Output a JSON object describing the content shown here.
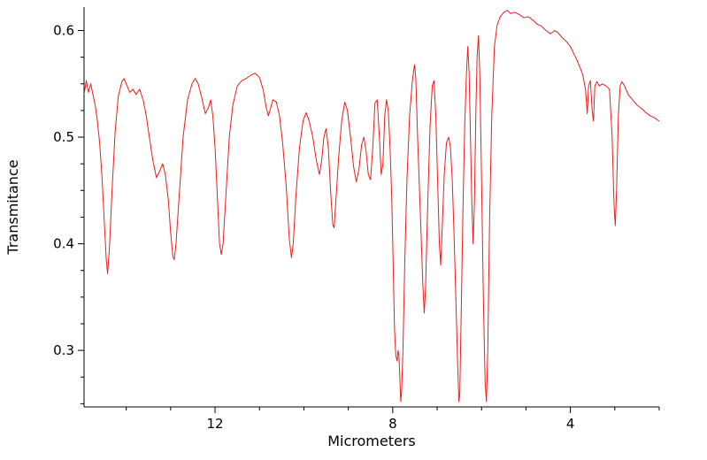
{
  "figure_title": "",
  "chart_data": {
    "type": "line",
    "title": "",
    "xlabel": "Micrometers",
    "ylabel": "Transmitance",
    "x_reversed": true,
    "xlim": [
      14.95,
      2.0
    ],
    "ylim": [
      0.247,
      0.622
    ],
    "grid": false,
    "legend": "none",
    "line_color": "#ee1c1c",
    "axis_color": "#000000",
    "x_ticks": [
      {
        "value": 12,
        "label": "12"
      },
      {
        "value": 8,
        "label": "8"
      },
      {
        "value": 4,
        "label": "4"
      }
    ],
    "x_minor_ticks": [
      14,
      13,
      11,
      10,
      9,
      7,
      6,
      5,
      3,
      2
    ],
    "y_ticks": [
      {
        "value": 0.3,
        "label": "0.3"
      },
      {
        "value": 0.4,
        "label": "0.4"
      },
      {
        "value": 0.5,
        "label": "0.5"
      },
      {
        "value": 0.6,
        "label": "0.6"
      }
    ],
    "y_minor_step": 0.025,
    "series": [
      {
        "name": "transmittance-spectrum",
        "color": "#ee1c1c",
        "points": [
          [
            14.95,
            0.54
          ],
          [
            14.9,
            0.553
          ],
          [
            14.85,
            0.542
          ],
          [
            14.8,
            0.55
          ],
          [
            14.75,
            0.54
          ],
          [
            14.7,
            0.53
          ],
          [
            14.65,
            0.515
          ],
          [
            14.6,
            0.495
          ],
          [
            14.55,
            0.465
          ],
          [
            14.5,
            0.425
          ],
          [
            14.45,
            0.385
          ],
          [
            14.42,
            0.372
          ],
          [
            14.38,
            0.395
          ],
          [
            14.32,
            0.45
          ],
          [
            14.25,
            0.505
          ],
          [
            14.18,
            0.538
          ],
          [
            14.1,
            0.552
          ],
          [
            14.05,
            0.555
          ],
          [
            14.0,
            0.55
          ],
          [
            13.92,
            0.542
          ],
          [
            13.85,
            0.545
          ],
          [
            13.78,
            0.54
          ],
          [
            13.7,
            0.545
          ],
          [
            13.62,
            0.535
          ],
          [
            13.55,
            0.52
          ],
          [
            13.48,
            0.5
          ],
          [
            13.4,
            0.478
          ],
          [
            13.32,
            0.462
          ],
          [
            13.25,
            0.468
          ],
          [
            13.18,
            0.475
          ],
          [
            13.12,
            0.465
          ],
          [
            13.05,
            0.44
          ],
          [
            13.0,
            0.41
          ],
          [
            12.95,
            0.388
          ],
          [
            12.92,
            0.385
          ],
          [
            12.88,
            0.4
          ],
          [
            12.8,
            0.45
          ],
          [
            12.72,
            0.5
          ],
          [
            12.62,
            0.535
          ],
          [
            12.52,
            0.55
          ],
          [
            12.45,
            0.555
          ],
          [
            12.38,
            0.55
          ],
          [
            12.3,
            0.537
          ],
          [
            12.22,
            0.522
          ],
          [
            12.15,
            0.528
          ],
          [
            12.1,
            0.535
          ],
          [
            12.05,
            0.52
          ],
          [
            12.0,
            0.49
          ],
          [
            11.95,
            0.445
          ],
          [
            11.9,
            0.4
          ],
          [
            11.86,
            0.39
          ],
          [
            11.82,
            0.4
          ],
          [
            11.75,
            0.45
          ],
          [
            11.68,
            0.5
          ],
          [
            11.6,
            0.53
          ],
          [
            11.5,
            0.548
          ],
          [
            11.4,
            0.553
          ],
          [
            11.3,
            0.555
          ],
          [
            11.2,
            0.558
          ],
          [
            11.1,
            0.56
          ],
          [
            11.0,
            0.556
          ],
          [
            10.92,
            0.545
          ],
          [
            10.85,
            0.528
          ],
          [
            10.8,
            0.52
          ],
          [
            10.75,
            0.527
          ],
          [
            10.7,
            0.535
          ],
          [
            10.62,
            0.533
          ],
          [
            10.55,
            0.52
          ],
          [
            10.48,
            0.495
          ],
          [
            10.4,
            0.455
          ],
          [
            10.33,
            0.405
          ],
          [
            10.28,
            0.387
          ],
          [
            10.24,
            0.4
          ],
          [
            10.18,
            0.445
          ],
          [
            10.1,
            0.49
          ],
          [
            10.02,
            0.515
          ],
          [
            9.95,
            0.523
          ],
          [
            9.88,
            0.515
          ],
          [
            9.8,
            0.5
          ],
          [
            9.72,
            0.478
          ],
          [
            9.65,
            0.465
          ],
          [
            9.6,
            0.478
          ],
          [
            9.55,
            0.5
          ],
          [
            9.5,
            0.508
          ],
          [
            9.45,
            0.49
          ],
          [
            9.4,
            0.45
          ],
          [
            9.35,
            0.418
          ],
          [
            9.32,
            0.415
          ],
          [
            9.28,
            0.44
          ],
          [
            9.22,
            0.48
          ],
          [
            9.15,
            0.515
          ],
          [
            9.08,
            0.533
          ],
          [
            9.02,
            0.525
          ],
          [
            8.95,
            0.5
          ],
          [
            8.88,
            0.472
          ],
          [
            8.82,
            0.458
          ],
          [
            8.76,
            0.47
          ],
          [
            8.7,
            0.493
          ],
          [
            8.65,
            0.5
          ],
          [
            8.6,
            0.487
          ],
          [
            8.55,
            0.465
          ],
          [
            8.5,
            0.46
          ],
          [
            8.45,
            0.49
          ],
          [
            8.4,
            0.532
          ],
          [
            8.35,
            0.535
          ],
          [
            8.3,
            0.5
          ],
          [
            8.26,
            0.465
          ],
          [
            8.22,
            0.475
          ],
          [
            8.18,
            0.52
          ],
          [
            8.14,
            0.535
          ],
          [
            8.1,
            0.525
          ],
          [
            8.06,
            0.49
          ],
          [
            8.02,
            0.44
          ],
          [
            7.99,
            0.38
          ],
          [
            7.96,
            0.32
          ],
          [
            7.93,
            0.295
          ],
          [
            7.9,
            0.29
          ],
          [
            7.88,
            0.3
          ],
          [
            7.86,
            0.295
          ],
          [
            7.84,
            0.275
          ],
          [
            7.82,
            0.252
          ],
          [
            7.8,
            0.262
          ],
          [
            7.77,
            0.3
          ],
          [
            7.73,
            0.38
          ],
          [
            7.68,
            0.46
          ],
          [
            7.62,
            0.52
          ],
          [
            7.56,
            0.552
          ],
          [
            7.51,
            0.568
          ],
          [
            7.48,
            0.555
          ],
          [
            7.44,
            0.5
          ],
          [
            7.38,
            0.43
          ],
          [
            7.32,
            0.36
          ],
          [
            7.29,
            0.335
          ],
          [
            7.26,
            0.36
          ],
          [
            7.21,
            0.44
          ],
          [
            7.16,
            0.51
          ],
          [
            7.11,
            0.548
          ],
          [
            7.07,
            0.553
          ],
          [
            7.03,
            0.52
          ],
          [
            6.99,
            0.46
          ],
          [
            6.95,
            0.4
          ],
          [
            6.92,
            0.38
          ],
          [
            6.89,
            0.41
          ],
          [
            6.84,
            0.465
          ],
          [
            6.79,
            0.495
          ],
          [
            6.74,
            0.5
          ],
          [
            6.7,
            0.49
          ],
          [
            6.66,
            0.46
          ],
          [
            6.62,
            0.41
          ],
          [
            6.58,
            0.35
          ],
          [
            6.54,
            0.29
          ],
          [
            6.51,
            0.252
          ],
          [
            6.49,
            0.26
          ],
          [
            6.46,
            0.33
          ],
          [
            6.42,
            0.43
          ],
          [
            6.38,
            0.51
          ],
          [
            6.34,
            0.56
          ],
          [
            6.31,
            0.585
          ],
          [
            6.28,
            0.56
          ],
          [
            6.25,
            0.5
          ],
          [
            6.22,
            0.44
          ],
          [
            6.19,
            0.4
          ],
          [
            6.16,
            0.44
          ],
          [
            6.13,
            0.52
          ],
          [
            6.1,
            0.575
          ],
          [
            6.07,
            0.595
          ],
          [
            6.04,
            0.56
          ],
          [
            6.0,
            0.46
          ],
          [
            5.96,
            0.35
          ],
          [
            5.92,
            0.27
          ],
          [
            5.89,
            0.252
          ],
          [
            5.86,
            0.3
          ],
          [
            5.82,
            0.42
          ],
          [
            5.77,
            0.52
          ],
          [
            5.71,
            0.585
          ],
          [
            5.65,
            0.605
          ],
          [
            5.58,
            0.613
          ],
          [
            5.5,
            0.617
          ],
          [
            5.42,
            0.619
          ],
          [
            5.35,
            0.616
          ],
          [
            5.25,
            0.617
          ],
          [
            5.15,
            0.615
          ],
          [
            5.05,
            0.612
          ],
          [
            4.95,
            0.613
          ],
          [
            4.85,
            0.61
          ],
          [
            4.75,
            0.606
          ],
          [
            4.65,
            0.604
          ],
          [
            4.55,
            0.6
          ],
          [
            4.45,
            0.597
          ],
          [
            4.35,
            0.6
          ],
          [
            4.28,
            0.598
          ],
          [
            4.2,
            0.594
          ],
          [
            4.1,
            0.59
          ],
          [
            4.0,
            0.585
          ],
          [
            3.92,
            0.578
          ],
          [
            3.85,
            0.572
          ],
          [
            3.78,
            0.565
          ],
          [
            3.72,
            0.558
          ],
          [
            3.66,
            0.545
          ],
          [
            3.62,
            0.522
          ],
          [
            3.59,
            0.548
          ],
          [
            3.55,
            0.553
          ],
          [
            3.51,
            0.525
          ],
          [
            3.48,
            0.515
          ],
          [
            3.45,
            0.548
          ],
          [
            3.4,
            0.552
          ],
          [
            3.35,
            0.548
          ],
          [
            3.28,
            0.55
          ],
          [
            3.2,
            0.548
          ],
          [
            3.12,
            0.545
          ],
          [
            3.06,
            0.5
          ],
          [
            3.02,
            0.44
          ],
          [
            2.99,
            0.417
          ],
          [
            2.96,
            0.45
          ],
          [
            2.92,
            0.52
          ],
          [
            2.88,
            0.548
          ],
          [
            2.84,
            0.552
          ],
          [
            2.78,
            0.548
          ],
          [
            2.7,
            0.54
          ],
          [
            2.6,
            0.535
          ],
          [
            2.5,
            0.53
          ],
          [
            2.4,
            0.527
          ],
          [
            2.3,
            0.523
          ],
          [
            2.2,
            0.52
          ],
          [
            2.1,
            0.518
          ],
          [
            2.0,
            0.515
          ]
        ]
      }
    ]
  }
}
